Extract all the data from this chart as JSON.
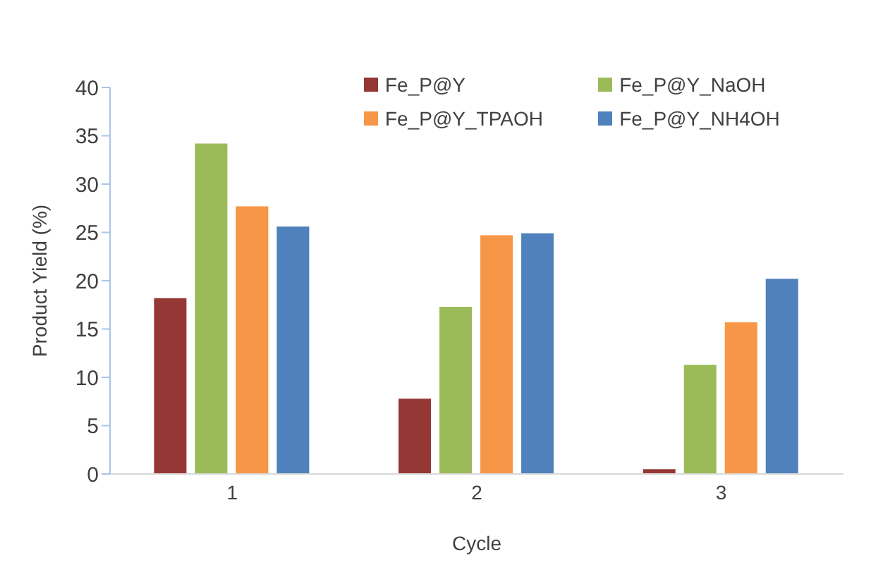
{
  "chart_data": {
    "type": "bar",
    "xlabel": "Cycle",
    "ylabel": "Product Yield  (%)",
    "categories": [
      "1",
      "2",
      "3"
    ],
    "series": [
      {
        "name": "Fe_P@Y",
        "color": "#953735",
        "values": [
          18.2,
          7.8,
          0.5
        ]
      },
      {
        "name": "Fe_P@Y_NaOH",
        "color": "#9bbb59",
        "values": [
          34.2,
          17.3,
          11.3
        ]
      },
      {
        "name": "Fe_P@Y_TPAOH",
        "color": "#f79646",
        "values": [
          27.7,
          24.7,
          15.7
        ]
      },
      {
        "name": "Fe_P@Y_NH4OH",
        "color": "#4f81bd",
        "values": [
          25.6,
          24.9,
          20.2
        ]
      }
    ],
    "ylim": [
      0,
      40
    ],
    "yticks": [
      0,
      5,
      10,
      15,
      20,
      25,
      30,
      35,
      40
    ],
    "grid": false,
    "legend": "top right"
  }
}
